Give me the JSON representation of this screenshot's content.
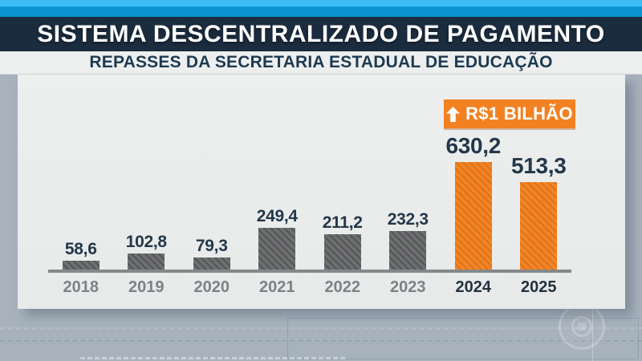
{
  "header": {
    "title": "SISTEMA DESCENTRALIZADO DE PAGAMENTO",
    "subtitle": "REPASSES DA SECRETARIA ESTADUAL DE EDUCAÇÃO"
  },
  "badge": {
    "label": "R$1 BILHÃO",
    "icon": "up-arrow",
    "color": "#F28122"
  },
  "chart_data": {
    "type": "bar",
    "title": "SISTEMA DESCENTRALIZADO DE PAGAMENTO",
    "subtitle": "REPASSES DA SECRETARIA ESTADUAL DE EDUCAÇÃO",
    "categories": [
      "2018",
      "2019",
      "2020",
      "2021",
      "2022",
      "2023",
      "2024",
      "2025"
    ],
    "values": [
      58.6,
      102.8,
      79.3,
      249.4,
      211.2,
      232.3,
      630.2,
      513.3
    ],
    "value_labels": [
      "58,6",
      "102,8",
      "79,3",
      "249,4",
      "211,2",
      "232,3",
      "630,2",
      "513,3"
    ],
    "highlight_indices": [
      6,
      7
    ],
    "annotation": {
      "text": "R$1 BILHÃO",
      "icon": "up-arrow"
    },
    "xlabel": "",
    "ylabel": "",
    "ylim": [
      0,
      660
    ],
    "grid": false,
    "legend": false,
    "colors": {
      "bar_default": "#6C6D6E",
      "bar_highlight": "#F28122",
      "value_label": "#24374A",
      "year_default": "#7C8187",
      "year_highlight": "#22313F",
      "axis_line": "#84888B",
      "header_navy": "#1B2C3E",
      "header_blue_light": "#3CBCF5",
      "header_blue": "#0A94D2",
      "panel_bg": "#EAEDEC",
      "page_bg": "#A7B2BD"
    }
  },
  "watermark": {
    "name": "globo-logo"
  }
}
